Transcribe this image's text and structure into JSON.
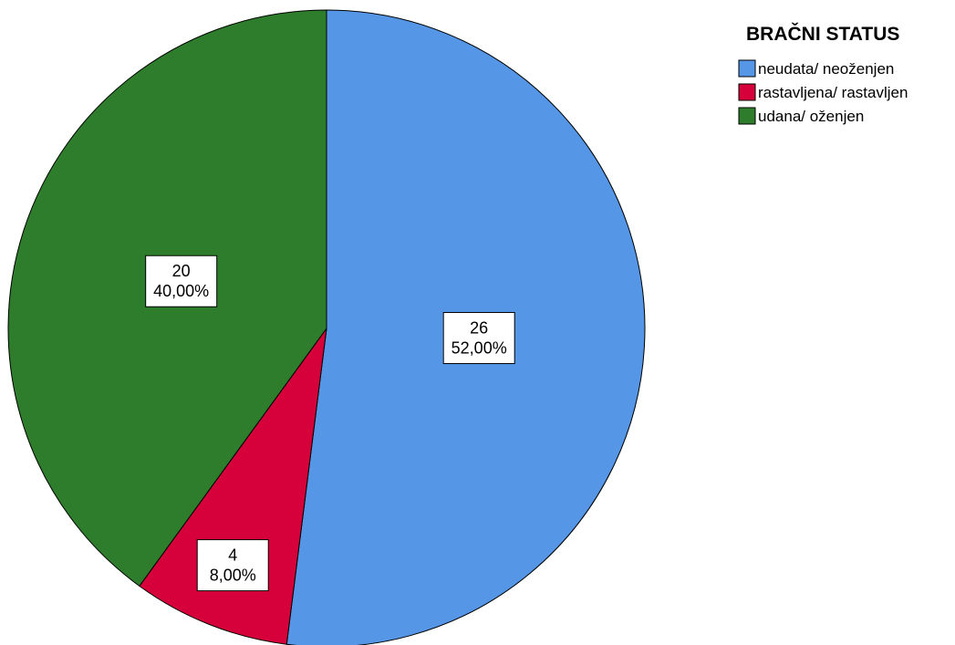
{
  "chart_data": {
    "type": "pie",
    "legend_title": "BRAČNI STATUS",
    "legend_position": "top-right",
    "start": "top",
    "direction": "clockwise",
    "slices": [
      {
        "label": "neudata/ neoženjen",
        "value": 26,
        "percent_label": "52,00%",
        "color": "#5596e6"
      },
      {
        "label": "rastavljena/ rastavljen",
        "value": 4,
        "percent_label": "8,00%",
        "color": "#d6003a"
      },
      {
        "label": "udana/ oženjen",
        "value": 20,
        "percent_label": "40,00%",
        "color": "#2e7d2c"
      }
    ]
  }
}
